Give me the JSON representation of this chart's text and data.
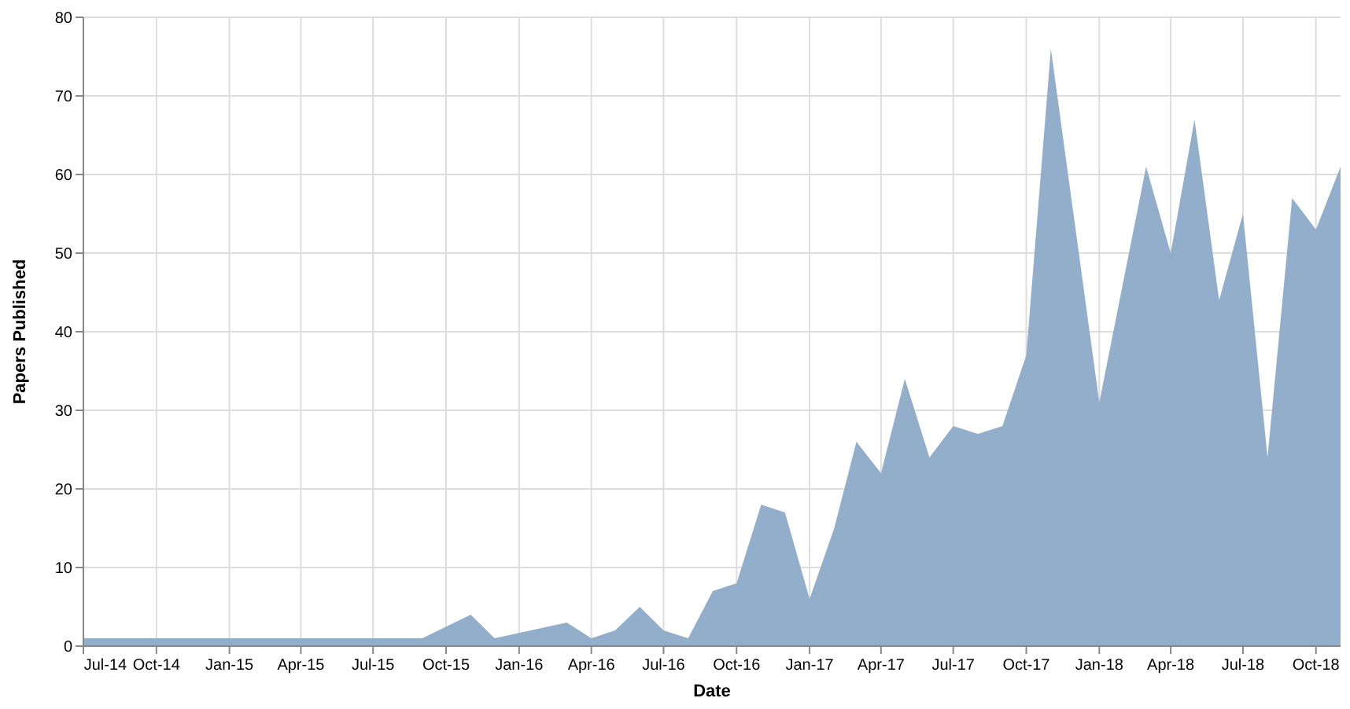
{
  "chart_data": {
    "type": "area",
    "xlabel": "Date",
    "ylabel": "Papers Published",
    "x": [
      "2014-07",
      "2015-09",
      "2015-11",
      "2015-12",
      "2016-03",
      "2016-04",
      "2016-05",
      "2016-06",
      "2016-07",
      "2016-08",
      "2016-09",
      "2016-10",
      "2016-11",
      "2016-12",
      "2017-01",
      "2017-02",
      "2017-03",
      "2017-04",
      "2017-05",
      "2017-06",
      "2017-07",
      "2017-08",
      "2017-09",
      "2017-10",
      "2017-11",
      "2018-01",
      "2018-03",
      "2018-04",
      "2018-05",
      "2018-06",
      "2018-07",
      "2018-08",
      "2018-09",
      "2018-10",
      "2018-11"
    ],
    "series": [
      {
        "color": "#92aeca",
        "values": [
          1,
          1,
          4,
          1,
          3,
          1,
          2,
          5,
          2,
          1,
          7,
          8,
          18,
          17,
          6,
          15,
          26,
          22,
          34,
          24,
          28,
          27,
          28,
          37,
          76,
          31,
          61,
          50,
          67,
          44,
          55,
          24,
          57,
          53,
          61
        ]
      }
    ],
    "xlim": [
      "2014-07",
      "2018-11"
    ],
    "xticks": [
      {
        "value": "2014-07",
        "label": "Jul-14"
      },
      {
        "value": "2014-10",
        "label": "Oct-14"
      },
      {
        "value": "2015-01",
        "label": "Jan-15"
      },
      {
        "value": "2015-04",
        "label": "Apr-15"
      },
      {
        "value": "2015-07",
        "label": "Jul-15"
      },
      {
        "value": "2015-10",
        "label": "Oct-15"
      },
      {
        "value": "2016-01",
        "label": "Jan-16"
      },
      {
        "value": "2016-04",
        "label": "Apr-16"
      },
      {
        "value": "2016-07",
        "label": "Jul-16"
      },
      {
        "value": "2016-10",
        "label": "Oct-16"
      },
      {
        "value": "2017-01",
        "label": "Jan-17"
      },
      {
        "value": "2017-04",
        "label": "Apr-17"
      },
      {
        "value": "2017-07",
        "label": "Jul-17"
      },
      {
        "value": "2017-10",
        "label": "Oct-17"
      },
      {
        "value": "2018-01",
        "label": "Jan-18"
      },
      {
        "value": "2018-04",
        "label": "Apr-18"
      },
      {
        "value": "2018-07",
        "label": "Jul-18"
      },
      {
        "value": "2018-10",
        "label": "Oct-18"
      }
    ],
    "ylim": [
      0,
      80
    ],
    "yticks": [
      0,
      10,
      20,
      30,
      40,
      50,
      60,
      70,
      80
    ],
    "grid": true
  }
}
